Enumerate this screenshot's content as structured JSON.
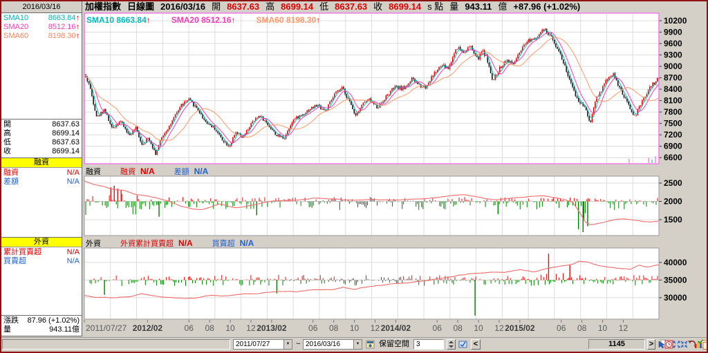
{
  "sidebar": {
    "date": "2016/03/16",
    "sma_rows": [
      {
        "label": "SMA10",
        "value": "8663.84",
        "arrow": "↑"
      },
      {
        "label": "SMA20",
        "value": "8512.16",
        "arrow": "↑"
      },
      {
        "label": "SMA60",
        "value": "8198.30",
        "arrow": "↑"
      }
    ],
    "ohlc_rows": [
      {
        "label": "開",
        "value": "8637.63"
      },
      {
        "label": "高",
        "value": "8699.14"
      },
      {
        "label": "低",
        "value": "8637.63"
      },
      {
        "label": "收",
        "value": "8699.14"
      }
    ],
    "margin_section": {
      "title": "融資",
      "rows": [
        {
          "label": "融資",
          "value": "N/A"
        },
        {
          "label": "差額",
          "value": "N/A"
        }
      ]
    },
    "foreign_section": {
      "title": "外資",
      "rows": [
        {
          "label": "累計買賣超",
          "value": "N/A"
        },
        {
          "label": "買賣超",
          "value": "N/A"
        }
      ]
    },
    "stats_rows": [
      {
        "label": "漲跌",
        "value": "87.96 (+1.02%)"
      },
      {
        "label": "量",
        "value": "943.11億"
      }
    ]
  },
  "header": {
    "segments": [
      {
        "text": "加權指數",
        "color": "#000000",
        "bold": true
      },
      {
        "text": "日線圖",
        "color": "#000000",
        "bold": true
      },
      {
        "text": "2016/03/16",
        "color": "#000000",
        "bold": true
      },
      {
        "text": "開",
        "color": "#000000",
        "bold": false
      },
      {
        "text": "8637.63",
        "color": "#e00000",
        "bold": true
      },
      {
        "text": "高",
        "color": "#000000",
        "bold": false
      },
      {
        "text": "8699.14",
        "color": "#e00000",
        "bold": true
      },
      {
        "text": "低",
        "color": "#000000",
        "bold": false
      },
      {
        "text": "8637.63",
        "color": "#e00000",
        "bold": true
      },
      {
        "text": "收",
        "color": "#000000",
        "bold": false
      },
      {
        "text": "8699.14",
        "color": "#e00000",
        "bold": true
      },
      {
        "text": "s 點",
        "color": "#000000",
        "bold": false
      },
      {
        "text": "量",
        "color": "#000000",
        "bold": false
      },
      {
        "text": "943.11",
        "color": "#000000",
        "bold": true
      },
      {
        "text": "億",
        "color": "#000000",
        "bold": false
      },
      {
        "text": "+87.96 (+1.02%)",
        "color": "#000000",
        "bold": true
      }
    ]
  },
  "chart_data": [
    {
      "type": "candlestick",
      "title": "加權指數 日線圖",
      "date": "2016/03/16",
      "ohlc": {
        "open": 8637.63,
        "high": 8699.14,
        "low": 8637.63,
        "close": 8699.14
      },
      "change": "+87.96 (+1.02%)",
      "volume": "943.11億",
      "bars_visible": 1145,
      "x_range": [
        "2011/07/27",
        "2016/03/16"
      ],
      "y_ticks": [
        10200,
        9900,
        9600,
        9300,
        9000,
        8700,
        8400,
        8100,
        7800,
        7500,
        7200,
        6900,
        6600
      ],
      "series": [
        {
          "name": "SMA10",
          "value": "8663.84",
          "arrow": "↑",
          "color": "#00bdbd",
          "window": 10
        },
        {
          "name": "SMA20",
          "value": "8512.16",
          "arrow": "↑",
          "color": "#f53cb4",
          "window": 20
        },
        {
          "name": "SMA60",
          "value": "8198.30",
          "arrow": "↑",
          "color": "#ff9868",
          "window": 60
        }
      ],
      "colors": {
        "up": "#e60000",
        "down": "#141414"
      },
      "close_anchors": [
        [
          0,
          8780
        ],
        [
          0.008,
          8550
        ],
        [
          0.022,
          7650
        ],
        [
          0.035,
          7880
        ],
        [
          0.048,
          7350
        ],
        [
          0.062,
          7580
        ],
        [
          0.078,
          7180
        ],
        [
          0.09,
          7380
        ],
        [
          0.1,
          6950
        ],
        [
          0.112,
          7120
        ],
        [
          0.124,
          6700
        ],
        [
          0.136,
          7180
        ],
        [
          0.152,
          7520
        ],
        [
          0.168,
          7980
        ],
        [
          0.182,
          8120
        ],
        [
          0.196,
          7900
        ],
        [
          0.21,
          7560
        ],
        [
          0.226,
          7380
        ],
        [
          0.24,
          7080
        ],
        [
          0.252,
          6900
        ],
        [
          0.264,
          7250
        ],
        [
          0.276,
          7120
        ],
        [
          0.29,
          7480
        ],
        [
          0.305,
          7720
        ],
        [
          0.32,
          7460
        ],
        [
          0.335,
          7180
        ],
        [
          0.348,
          7120
        ],
        [
          0.362,
          7580
        ],
        [
          0.378,
          7720
        ],
        [
          0.392,
          7880
        ],
        [
          0.406,
          7980
        ],
        [
          0.42,
          7820
        ],
        [
          0.436,
          8280
        ],
        [
          0.45,
          8420
        ],
        [
          0.462,
          8050
        ],
        [
          0.472,
          7720
        ],
        [
          0.484,
          8020
        ],
        [
          0.496,
          8120
        ],
        [
          0.51,
          7920
        ],
        [
          0.526,
          8220
        ],
        [
          0.54,
          8450
        ],
        [
          0.556,
          8420
        ],
        [
          0.57,
          8660
        ],
        [
          0.582,
          8520
        ],
        [
          0.594,
          8450
        ],
        [
          0.608,
          8800
        ],
        [
          0.622,
          9020
        ],
        [
          0.634,
          8950
        ],
        [
          0.648,
          9520
        ],
        [
          0.66,
          9380
        ],
        [
          0.672,
          9520
        ],
        [
          0.684,
          9180
        ],
        [
          0.694,
          9420
        ],
        [
          0.702,
          9150
        ],
        [
          0.71,
          8600
        ],
        [
          0.722,
          8920
        ],
        [
          0.734,
          9180
        ],
        [
          0.746,
          9050
        ],
        [
          0.758,
          9350
        ],
        [
          0.772,
          9680
        ],
        [
          0.786,
          9780
        ],
        [
          0.8,
          9960
        ],
        [
          0.812,
          9780
        ],
        [
          0.824,
          9480
        ],
        [
          0.836,
          9020
        ],
        [
          0.848,
          8480
        ],
        [
          0.86,
          8080
        ],
        [
          0.872,
          7950
        ],
        [
          0.88,
          7480
        ],
        [
          0.89,
          8150
        ],
        [
          0.9,
          8380
        ],
        [
          0.91,
          8680
        ],
        [
          0.92,
          8820
        ],
        [
          0.93,
          8480
        ],
        [
          0.94,
          8180
        ],
        [
          0.95,
          7880
        ],
        [
          0.958,
          7680
        ],
        [
          0.966,
          7920
        ],
        [
          0.976,
          8220
        ],
        [
          0.986,
          8480
        ],
        [
          1,
          8699
        ]
      ],
      "bottom_marks": [
        {
          "t": 0.948,
          "h": 6,
          "color": "#ff80c8"
        },
        {
          "t": 0.982,
          "h": 8,
          "color": "#ff80c8"
        },
        {
          "t": 0.988,
          "h": 5,
          "color": "#40c8c8"
        },
        {
          "t": 0.994,
          "h": 10,
          "color": "#ff80c8"
        }
      ]
    },
    {
      "type": "bar+line",
      "name": "融資",
      "legend": [
        {
          "label": "融資",
          "value": "N/A",
          "color": "#dd0000"
        },
        {
          "label": "差額",
          "value": "N/A",
          "color": "#2060d0"
        }
      ],
      "y_ticks": [
        2500,
        2000,
        1500
      ],
      "bar_baseline": 2000,
      "line_color": "#f26a6a",
      "bar_up_color": "#dd1111",
      "bar_down_color": "#007d00",
      "line_anchors": [
        [
          0,
          2560
        ],
        [
          0.015,
          2470
        ],
        [
          0.03,
          2420
        ],
        [
          0.05,
          2330
        ],
        [
          0.07,
          2300
        ],
        [
          0.09,
          2180
        ],
        [
          0.11,
          2150
        ],
        [
          0.13,
          2080
        ],
        [
          0.15,
          1980
        ],
        [
          0.17,
          1860
        ],
        [
          0.19,
          1790
        ],
        [
          0.205,
          1780
        ],
        [
          0.22,
          1850
        ],
        [
          0.235,
          1930
        ],
        [
          0.25,
          1870
        ],
        [
          0.265,
          1820
        ],
        [
          0.28,
          1860
        ],
        [
          0.3,
          1920
        ],
        [
          0.32,
          1990
        ],
        [
          0.34,
          2020
        ],
        [
          0.36,
          2030
        ],
        [
          0.38,
          2050
        ],
        [
          0.4,
          2090
        ],
        [
          0.42,
          2070
        ],
        [
          0.44,
          2060
        ],
        [
          0.46,
          2030
        ],
        [
          0.48,
          2040
        ],
        [
          0.5,
          2050
        ],
        [
          0.52,
          2040
        ],
        [
          0.54,
          2030
        ],
        [
          0.56,
          2050
        ],
        [
          0.58,
          2060
        ],
        [
          0.6,
          2080
        ],
        [
          0.62,
          2110
        ],
        [
          0.64,
          2160
        ],
        [
          0.66,
          2180
        ],
        [
          0.68,
          2140
        ],
        [
          0.7,
          2070
        ],
        [
          0.72,
          2050
        ],
        [
          0.74,
          2080
        ],
        [
          0.76,
          2110
        ],
        [
          0.78,
          2140
        ],
        [
          0.8,
          2150
        ],
        [
          0.82,
          2100
        ],
        [
          0.835,
          2060
        ],
        [
          0.85,
          1980
        ],
        [
          0.862,
          1700
        ],
        [
          0.872,
          1430
        ],
        [
          0.882,
          1360
        ],
        [
          0.895,
          1400
        ],
        [
          0.91,
          1450
        ],
        [
          0.925,
          1500
        ],
        [
          0.94,
          1520
        ],
        [
          0.955,
          1490
        ],
        [
          0.97,
          1460
        ],
        [
          0.985,
          1440
        ],
        [
          1,
          1470
        ]
      ],
      "special_bars": [
        {
          "t": 0.046,
          "v": 380
        },
        {
          "t": 0.052,
          "v": 430
        },
        {
          "t": 0.058,
          "v": 350
        },
        {
          "t": 0.064,
          "v": 300
        },
        {
          "t": 0.13,
          "v": -420
        },
        {
          "t": 0.3,
          "v": -380
        },
        {
          "t": 0.72,
          "v": -350
        },
        {
          "t": 0.86,
          "v": -760
        },
        {
          "t": 0.868,
          "v": -840
        },
        {
          "t": 0.876,
          "v": -680
        }
      ]
    },
    {
      "type": "bar+line",
      "name": "外資",
      "legend": [
        {
          "label": "外資累計買賣超",
          "value": "N/A",
          "color": "#dd0000"
        },
        {
          "label": "買賣超",
          "value": "N/A",
          "color": "#2060d0"
        }
      ],
      "y_ticks": [
        40000,
        35000,
        30000
      ],
      "bar_baseline": 35000,
      "line_color": "#f26a6a",
      "bar_up_color": "#dd1111",
      "bar_down_color": "#007d00",
      "line_anchors": [
        [
          0,
          30600
        ],
        [
          0.02,
          30100
        ],
        [
          0.05,
          30000
        ],
        [
          0.08,
          30400
        ],
        [
          0.1,
          31000
        ],
        [
          0.13,
          30400
        ],
        [
          0.16,
          29800
        ],
        [
          0.19,
          29900
        ],
        [
          0.22,
          30600
        ],
        [
          0.25,
          30500
        ],
        [
          0.28,
          31000
        ],
        [
          0.31,
          31300
        ],
        [
          0.34,
          31800
        ],
        [
          0.37,
          31700
        ],
        [
          0.4,
          32300
        ],
        [
          0.43,
          32300
        ],
        [
          0.45,
          33000
        ],
        [
          0.47,
          32400
        ],
        [
          0.5,
          33300
        ],
        [
          0.53,
          33800
        ],
        [
          0.56,
          34200
        ],
        [
          0.59,
          34800
        ],
        [
          0.62,
          35400
        ],
        [
          0.65,
          36200
        ],
        [
          0.68,
          36900
        ],
        [
          0.71,
          37200
        ],
        [
          0.73,
          37100
        ],
        [
          0.76,
          37900
        ],
        [
          0.78,
          37300
        ],
        [
          0.8,
          38000
        ],
        [
          0.83,
          38900
        ],
        [
          0.85,
          39600
        ],
        [
          0.86,
          40400
        ],
        [
          0.875,
          40100
        ],
        [
          0.89,
          39300
        ],
        [
          0.91,
          38700
        ],
        [
          0.93,
          38400
        ],
        [
          0.95,
          38100
        ],
        [
          0.965,
          39200
        ],
        [
          0.98,
          38600
        ],
        [
          1,
          39300
        ]
      ],
      "special_bars": [
        {
          "t": 0.035,
          "v": -4200
        },
        {
          "t": 0.335,
          "v": -3800
        },
        {
          "t": 0.68,
          "v": -10100
        },
        {
          "t": 0.808,
          "v": 7500
        },
        {
          "t": 0.845,
          "v": 4200
        }
      ]
    }
  ],
  "x_axis": {
    "ticks": [
      {
        "label": "2011/07/27",
        "t": 0,
        "bold": false
      },
      {
        "label": "2012/02",
        "t": 0.11,
        "bold": true
      },
      {
        "label": "06",
        "t": 0.182,
        "bold": false
      },
      {
        "label": "08",
        "t": 0.218,
        "bold": false
      },
      {
        "label": "10",
        "t": 0.254,
        "bold": false
      },
      {
        "label": "12",
        "t": 0.29,
        "bold": false
      },
      {
        "label": "2013/02",
        "t": 0.326,
        "bold": true
      },
      {
        "label": "06",
        "t": 0.398,
        "bold": false
      },
      {
        "label": "08",
        "t": 0.434,
        "bold": false
      },
      {
        "label": "10",
        "t": 0.47,
        "bold": false
      },
      {
        "label": "12",
        "t": 0.506,
        "bold": false
      },
      {
        "label": "2014/02",
        "t": 0.542,
        "bold": true
      },
      {
        "label": "06",
        "t": 0.614,
        "bold": false
      },
      {
        "label": "08",
        "t": 0.65,
        "bold": false
      },
      {
        "label": "10",
        "t": 0.686,
        "bold": false
      },
      {
        "label": "12",
        "t": 0.722,
        "bold": false
      },
      {
        "label": "2015/02",
        "t": 0.758,
        "bold": true
      },
      {
        "label": "06",
        "t": 0.83,
        "bold": false
      },
      {
        "label": "08",
        "t": 0.866,
        "bold": false
      },
      {
        "label": "10",
        "t": 0.902,
        "bold": false
      },
      {
        "label": "12",
        "t": 0.938,
        "bold": false
      }
    ]
  },
  "status_bar": {
    "range_start": "2011/07/27",
    "range_sep": "~",
    "range_end": "2016/03/16",
    "dropdown_glyph": "▼",
    "reserve_label": "保留空間",
    "reserve_value": "3",
    "prev_label": "<",
    "bar_count": "1145",
    "next_label": ">"
  }
}
